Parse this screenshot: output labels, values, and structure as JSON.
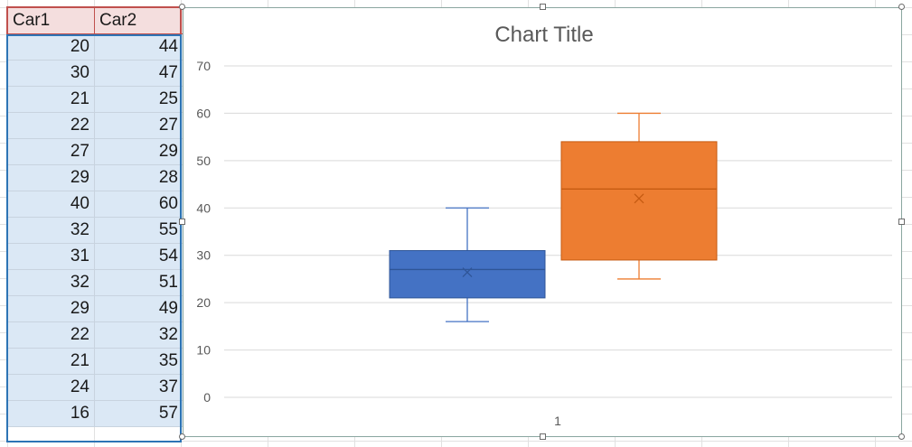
{
  "table": {
    "headers": [
      "Car1",
      "Car2"
    ],
    "rows": [
      [
        "20",
        "44"
      ],
      [
        "30",
        "47"
      ],
      [
        "21",
        "25"
      ],
      [
        "22",
        "27"
      ],
      [
        "27",
        "29"
      ],
      [
        "29",
        "28"
      ],
      [
        "40",
        "60"
      ],
      [
        "32",
        "55"
      ],
      [
        "31",
        "54"
      ],
      [
        "32",
        "51"
      ],
      [
        "29",
        "49"
      ],
      [
        "22",
        "32"
      ],
      [
        "21",
        "35"
      ],
      [
        "24",
        "37"
      ],
      [
        "16",
        "57"
      ]
    ]
  },
  "chart_data": {
    "type": "boxplot",
    "title": "Chart Title",
    "categories": [
      "1"
    ],
    "ylim": [
      0,
      70
    ],
    "yticks": [
      "0",
      "10",
      "20",
      "30",
      "40",
      "50",
      "60",
      "70"
    ],
    "grid": true,
    "series": [
      {
        "color": "#4472c4",
        "min": 16,
        "q1": 21,
        "median": 27,
        "q3": 31,
        "max": 40,
        "mean": 26.4
      },
      {
        "color": "#ed7d31",
        "min": 25,
        "q1": 29,
        "median": 44,
        "q3": 54,
        "max": 60,
        "mean": 42
      }
    ]
  }
}
